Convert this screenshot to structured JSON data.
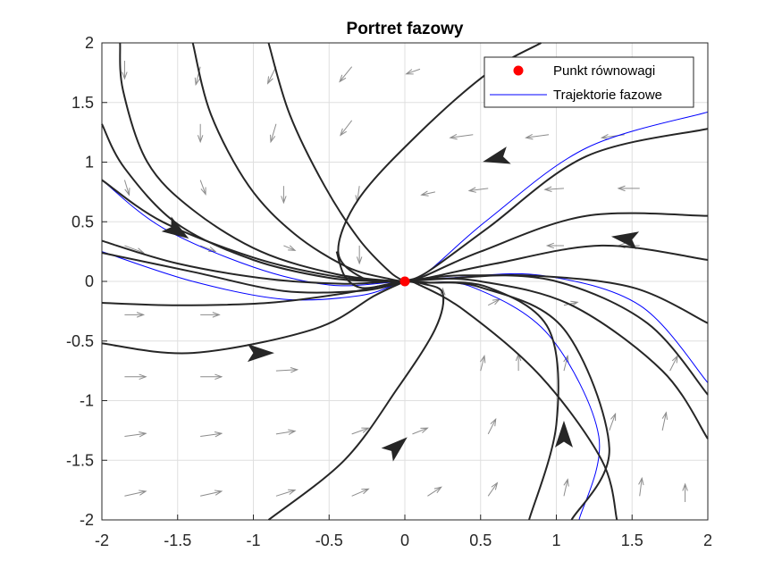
{
  "chart_data": {
    "type": "line",
    "title": "Portret fazowy",
    "xlabel": "",
    "ylabel": "",
    "xlim": [
      -2,
      2
    ],
    "ylim": [
      -2,
      2
    ],
    "x_ticks": [
      "-2",
      "-1.5",
      "-1",
      "-0.5",
      "0",
      "0.5",
      "1",
      "1.5",
      "2"
    ],
    "y_ticks": [
      "2",
      "1.5",
      "1",
      "0.5",
      "0",
      "-0.5",
      "-1",
      "-1.5",
      "-2"
    ],
    "grid": true,
    "legend_position": "top-right",
    "legend": [
      {
        "label": "Punkt równowagi",
        "marker": "dot",
        "color": "#ff0000"
      },
      {
        "label": "Trajektorie fazowe",
        "marker": "line",
        "color": "#0000ff"
      }
    ],
    "equilibrium": {
      "x": 0,
      "y": 0
    },
    "colors": {
      "trajectory": "#262626",
      "blue_trajectory": "#0000ff",
      "field_arrow": "#8c8c8c",
      "equilibrium": "#ff0000",
      "grid": "#dfdfdf"
    },
    "trajectories": [
      {
        "x": [
          -1.88,
          -1.86,
          -1.7,
          -1.4,
          -0.95,
          -0.45,
          -0.05,
          0.0
        ]
      },
      {
        "x": [
          -1.4,
          -1.28,
          -1.03,
          -0.73,
          -0.38,
          -0.1,
          0.0
        ]
      },
      {
        "x": [
          -0.9,
          -0.76,
          -0.53,
          -0.3,
          -0.1,
          0.0
        ]
      },
      {
        "x": [
          -0.45,
          -0.4,
          -0.3,
          -0.16,
          0.0
        ]
      },
      {
        "x": [
          0.9,
          0.55,
          0.1,
          -0.3,
          -0.44,
          -0.28,
          -0.06,
          0.0
        ]
      },
      {
        "x": [
          -2.0,
          -1.85,
          -1.5,
          -1.0,
          -0.5,
          -0.15,
          0.0
        ]
      },
      {
        "x": [
          -2.0,
          -1.6,
          -1.0,
          -0.5,
          -0.12,
          0.0
        ]
      },
      {
        "x": [
          -2.0,
          -1.5,
          -0.9,
          -0.4,
          -0.08,
          0.0
        ]
      },
      {
        "x": [
          -2.0,
          -1.4,
          -0.8,
          -0.3,
          -0.05,
          0.0
        ]
      },
      {
        "x": [
          -2.0,
          -1.5,
          -0.9,
          -0.4,
          -0.1,
          0.0
        ]
      },
      {
        "x": [
          -2.0,
          -1.4,
          -0.6,
          -0.2,
          0.0
        ]
      },
      {
        "x": [
          -0.9,
          -0.4,
          -0.05,
          0.2,
          0.25,
          0.12,
          0.0
        ]
      },
      {
        "x": [
          2.0,
          1.2,
          0.55,
          0.15,
          0.0
        ]
      },
      {
        "x": [
          2.0,
          1.2,
          0.5,
          0.12,
          0.0
        ]
      },
      {
        "x": [
          2.0,
          1.3,
          0.6,
          0.15,
          0.0
        ]
      },
      {
        "x": [
          2.0,
          1.6,
          1.0,
          0.4,
          0.05,
          0.0
        ]
      },
      {
        "x": [
          2.0,
          1.5,
          0.8,
          0.25,
          0.0
        ]
      },
      {
        "x": [
          2.0,
          1.7,
          1.1,
          0.5,
          0.1,
          0.0
        ]
      },
      {
        "x": [
          1.4,
          1.3,
          0.9,
          0.4,
          0.08,
          0.0
        ]
      },
      {
        "x": [
          0.82,
          1.0,
          0.95,
          0.55,
          0.15,
          0.0
        ]
      },
      {
        "x": [
          1.1,
          1.35,
          1.05,
          0.5,
          0.1,
          0.0
        ]
      }
    ],
    "blue_trajectories": [
      {
        "x": [
          -2.0,
          -1.6,
          -1.0,
          -0.5,
          -0.1,
          0.0
        ]
      },
      {
        "x": [
          -2.0,
          -1.4,
          -0.8,
          -0.3,
          -0.05,
          0.0
        ]
      },
      {
        "x": [
          2.0,
          1.2,
          0.55,
          0.15,
          0.0
        ]
      },
      {
        "x": [
          2.0,
          1.55,
          0.9,
          0.3,
          0.0
        ]
      },
      {
        "x": [
          1.15,
          1.28,
          0.95,
          0.45,
          0.1,
          0.0
        ]
      }
    ],
    "direction_arrows": [
      {
        "x": -1.5,
        "y": 0.42,
        "dx": 0.2,
        "dy": -0.13
      },
      {
        "x": -0.95,
        "y": -0.6,
        "dx": 0.2,
        "dy": 0.0
      },
      {
        "x": -0.05,
        "y": -1.38,
        "dx": 0.16,
        "dy": 0.14
      },
      {
        "x": 1.05,
        "y": -1.28,
        "dx": 0.0,
        "dy": 0.2
      },
      {
        "x": 1.45,
        "y": 0.36,
        "dx": -0.2,
        "dy": 0.03
      },
      {
        "x": 0.6,
        "y": 1.03,
        "dx": -0.2,
        "dy": -0.05
      }
    ],
    "field_arrows": [
      {
        "x": -1.85,
        "y": 1.85,
        "dx": 0.0,
        "dy": -0.3
      },
      {
        "x": -1.35,
        "y": 1.8,
        "dx": -0.06,
        "dy": -0.3
      },
      {
        "x": -0.85,
        "y": 1.8,
        "dx": -0.11,
        "dy": -0.28
      },
      {
        "x": -0.35,
        "y": 1.8,
        "dx": -0.16,
        "dy": -0.25
      },
      {
        "x": 0.1,
        "y": 1.78,
        "dx": -0.18,
        "dy": -0.08
      },
      {
        "x": -1.35,
        "y": 1.32,
        "dx": 0.0,
        "dy": -0.3
      },
      {
        "x": -0.85,
        "y": 1.32,
        "dx": -0.07,
        "dy": -0.3
      },
      {
        "x": -0.35,
        "y": 1.35,
        "dx": -0.15,
        "dy": -0.25
      },
      {
        "x": 0.45,
        "y": 1.23,
        "dx": -0.3,
        "dy": -0.05
      },
      {
        "x": 0.95,
        "y": 1.23,
        "dx": -0.3,
        "dy": -0.05
      },
      {
        "x": 1.45,
        "y": 1.23,
        "dx": -0.3,
        "dy": -0.05
      },
      {
        "x": -1.85,
        "y": 0.85,
        "dx": 0.06,
        "dy": -0.25
      },
      {
        "x": -1.35,
        "y": 0.85,
        "dx": 0.07,
        "dy": -0.24
      },
      {
        "x": -0.8,
        "y": 0.8,
        "dx": 0.0,
        "dy": -0.28
      },
      {
        "x": -0.3,
        "y": 0.8,
        "dx": -0.03,
        "dy": -0.27
      },
      {
        "x": 0.2,
        "y": 0.75,
        "dx": -0.18,
        "dy": -0.05
      },
      {
        "x": 0.55,
        "y": 0.78,
        "dx": -0.25,
        "dy": -0.04
      },
      {
        "x": 1.05,
        "y": 0.78,
        "dx": -0.25,
        "dy": -0.02
      },
      {
        "x": 1.55,
        "y": 0.78,
        "dx": -0.28,
        "dy": 0.0
      },
      {
        "x": -1.85,
        "y": 0.3,
        "dx": 0.25,
        "dy": -0.12
      },
      {
        "x": -1.35,
        "y": 0.3,
        "dx": 0.2,
        "dy": -0.1
      },
      {
        "x": -0.8,
        "y": 0.3,
        "dx": 0.15,
        "dy": -0.08
      },
      {
        "x": -0.3,
        "y": 0.3,
        "dx": 0.0,
        "dy": -0.3
      },
      {
        "x": 1.05,
        "y": 0.3,
        "dx": -0.22,
        "dy": 0.0
      },
      {
        "x": 1.55,
        "y": 0.3,
        "dx": -0.28,
        "dy": 0.0
      },
      {
        "x": -1.85,
        "y": -0.28,
        "dx": 0.25,
        "dy": 0.0
      },
      {
        "x": -1.35,
        "y": -0.28,
        "dx": 0.25,
        "dy": 0.0
      },
      {
        "x": 0.25,
        "y": -0.2,
        "dx": 0.0,
        "dy": 0.28
      },
      {
        "x": 0.55,
        "y": -0.2,
        "dx": 0.15,
        "dy": 0.1
      },
      {
        "x": 1.05,
        "y": -0.2,
        "dx": 0.18,
        "dy": 0.05
      },
      {
        "x": -1.85,
        "y": -0.8,
        "dx": 0.28,
        "dy": 0.0
      },
      {
        "x": -1.35,
        "y": -0.8,
        "dx": 0.28,
        "dy": 0.0
      },
      {
        "x": -0.85,
        "y": -0.75,
        "dx": 0.28,
        "dy": 0.02
      },
      {
        "x": 0.5,
        "y": -0.75,
        "dx": 0.05,
        "dy": 0.25
      },
      {
        "x": 0.75,
        "y": -0.75,
        "dx": 0.0,
        "dy": 0.28
      },
      {
        "x": 1.05,
        "y": -0.75,
        "dx": 0.05,
        "dy": 0.25
      },
      {
        "x": 1.75,
        "y": -0.75,
        "dx": 0.1,
        "dy": 0.25
      },
      {
        "x": -1.85,
        "y": -1.3,
        "dx": 0.28,
        "dy": 0.05
      },
      {
        "x": -1.35,
        "y": -1.3,
        "dx": 0.28,
        "dy": 0.05
      },
      {
        "x": -0.85,
        "y": -1.28,
        "dx": 0.25,
        "dy": 0.05
      },
      {
        "x": -0.35,
        "y": -1.28,
        "dx": 0.22,
        "dy": 0.1
      },
      {
        "x": 0.05,
        "y": -1.28,
        "dx": 0.2,
        "dy": 0.1
      },
      {
        "x": 0.55,
        "y": -1.28,
        "dx": 0.1,
        "dy": 0.25
      },
      {
        "x": 1.7,
        "y": -1.25,
        "dx": 0.05,
        "dy": 0.3
      },
      {
        "x": 1.35,
        "y": -1.25,
        "dx": 0.08,
        "dy": 0.28
      },
      {
        "x": -1.85,
        "y": -1.8,
        "dx": 0.28,
        "dy": 0.08
      },
      {
        "x": -1.35,
        "y": -1.8,
        "dx": 0.28,
        "dy": 0.08
      },
      {
        "x": -0.85,
        "y": -1.8,
        "dx": 0.25,
        "dy": 0.1
      },
      {
        "x": -0.35,
        "y": -1.8,
        "dx": 0.22,
        "dy": 0.12
      },
      {
        "x": 0.15,
        "y": -1.8,
        "dx": 0.18,
        "dy": 0.15
      },
      {
        "x": 0.55,
        "y": -1.8,
        "dx": 0.12,
        "dy": 0.22
      },
      {
        "x": 1.05,
        "y": -1.8,
        "dx": 0.05,
        "dy": 0.28
      },
      {
        "x": 1.55,
        "y": -1.8,
        "dx": 0.03,
        "dy": 0.3
      },
      {
        "x": 1.85,
        "y": -1.85,
        "dx": 0.0,
        "dy": 0.3
      }
    ]
  }
}
